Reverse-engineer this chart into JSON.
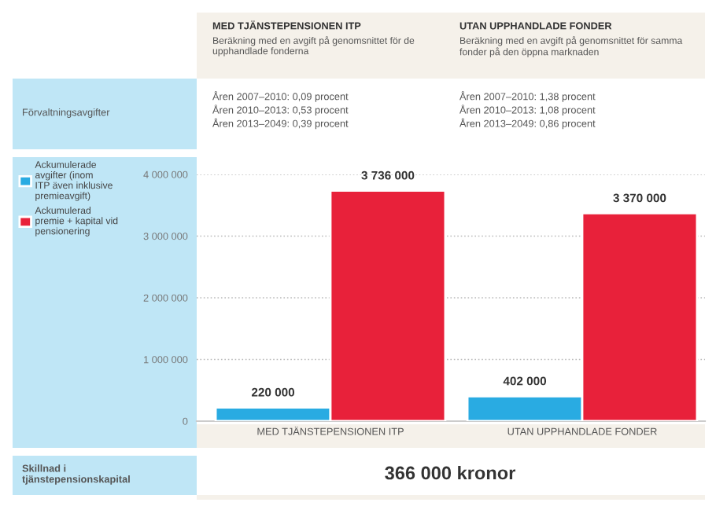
{
  "chart_data": {
    "type": "bar",
    "categories": [
      "MED TJÄNSTEPENSIONEN ITP",
      "UTAN UPPHANDLADE FONDER"
    ],
    "series": [
      {
        "name": "Ackumulerade\navgifter (inom\nITP även inklusive\npremieavgift)",
        "color": "#29abe2",
        "values": [
          220000,
          402000
        ]
      },
      {
        "name": "Ackumulerad\npremie + kapital vid\npensionering",
        "color": "#e8213a",
        "values": [
          3736000,
          3370000
        ]
      }
    ],
    "ylim": [
      0,
      4000000
    ],
    "yticks": [
      {
        "value": 0,
        "label": "0"
      },
      {
        "value": 1000000,
        "label": "1 000 000"
      },
      {
        "value": 2000000,
        "label": "2 000 000"
      },
      {
        "value": 3000000,
        "label": "3 000 000"
      },
      {
        "value": 4000000,
        "label": "4 000 000"
      }
    ],
    "value_labels": [
      [
        "220 000",
        "402 000"
      ],
      [
        "3 736 000",
        "3 370 000"
      ]
    ],
    "grid": "y",
    "legend": "left",
    "annotations": [
      "MED TJÄNSTEPENSIONEN ITP",
      "Beräkning med en avgift på genomsnittet för de\nupphandlade fonderna",
      "UTAN UPPHANDLADE FONDER",
      "Beräkning med en avgift på genomsnittet för samma\nfonder på den öppna marknaden",
      "Förvaltningsavgifter",
      "Åren 2007–2010: 0,09 procent\nÅren 2010–2013: 0,53 procent\nÅren 2013–2049: 0,39 procent",
      "Åren 2007–2010: 1,38 procent\nÅren 2010–2013: 1,08 procent\nÅren 2013–2049: 0,86 procent",
      "Skillnad i\ntjänstepensionskapital",
      "366 000 kronor"
    ]
  }
}
